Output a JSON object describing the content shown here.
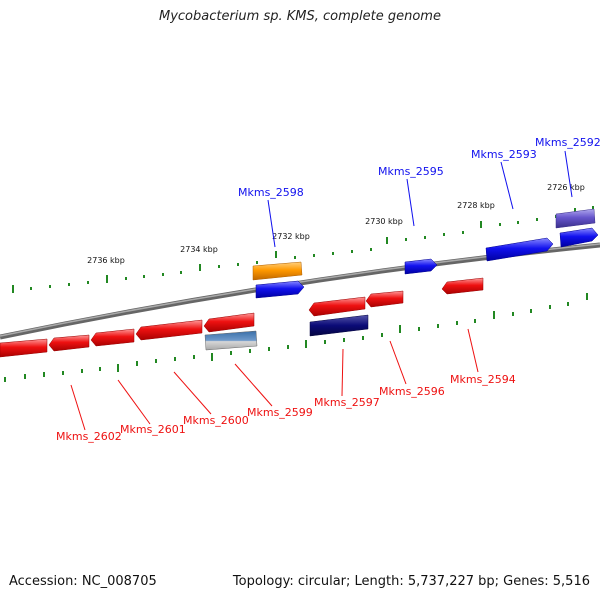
{
  "title": "Mycobacterium sp. KMS, complete genome",
  "footer": {
    "accession": "Accession: NC_008705",
    "summary": "Topology: circular; Length: 5,737,227 bp; Genes: 5,516"
  },
  "colors": {
    "red": "#ee1111",
    "blue": "#1111ee",
    "navy": "#0a0a77",
    "orange": "#ff9900",
    "purple": "#6655cc",
    "steel": "#4477aa",
    "tick": "#228822",
    "backbone": "#777777"
  },
  "scale_labels": [
    "2736 kbp",
    "2734 kbp",
    "2732 kbp",
    "2730 kbp",
    "2728 kbp",
    "2726 kbp"
  ],
  "genes": [
    {
      "name": "Mkms_2602",
      "strand": "reverse"
    },
    {
      "name": "Mkms_2601",
      "strand": "reverse"
    },
    {
      "name": "Mkms_2600",
      "strand": "reverse"
    },
    {
      "name": "Mkms_2599",
      "strand": "reverse"
    },
    {
      "name": "Mkms_2598",
      "strand": "forward"
    },
    {
      "name": "Mkms_2597",
      "strand": "reverse"
    },
    {
      "name": "Mkms_2596",
      "strand": "reverse"
    },
    {
      "name": "Mkms_2595",
      "strand": "forward"
    },
    {
      "name": "Mkms_2594",
      "strand": "reverse"
    },
    {
      "name": "Mkms_2593",
      "strand": "forward"
    },
    {
      "name": "Mkms_2592",
      "strand": "forward"
    }
  ]
}
